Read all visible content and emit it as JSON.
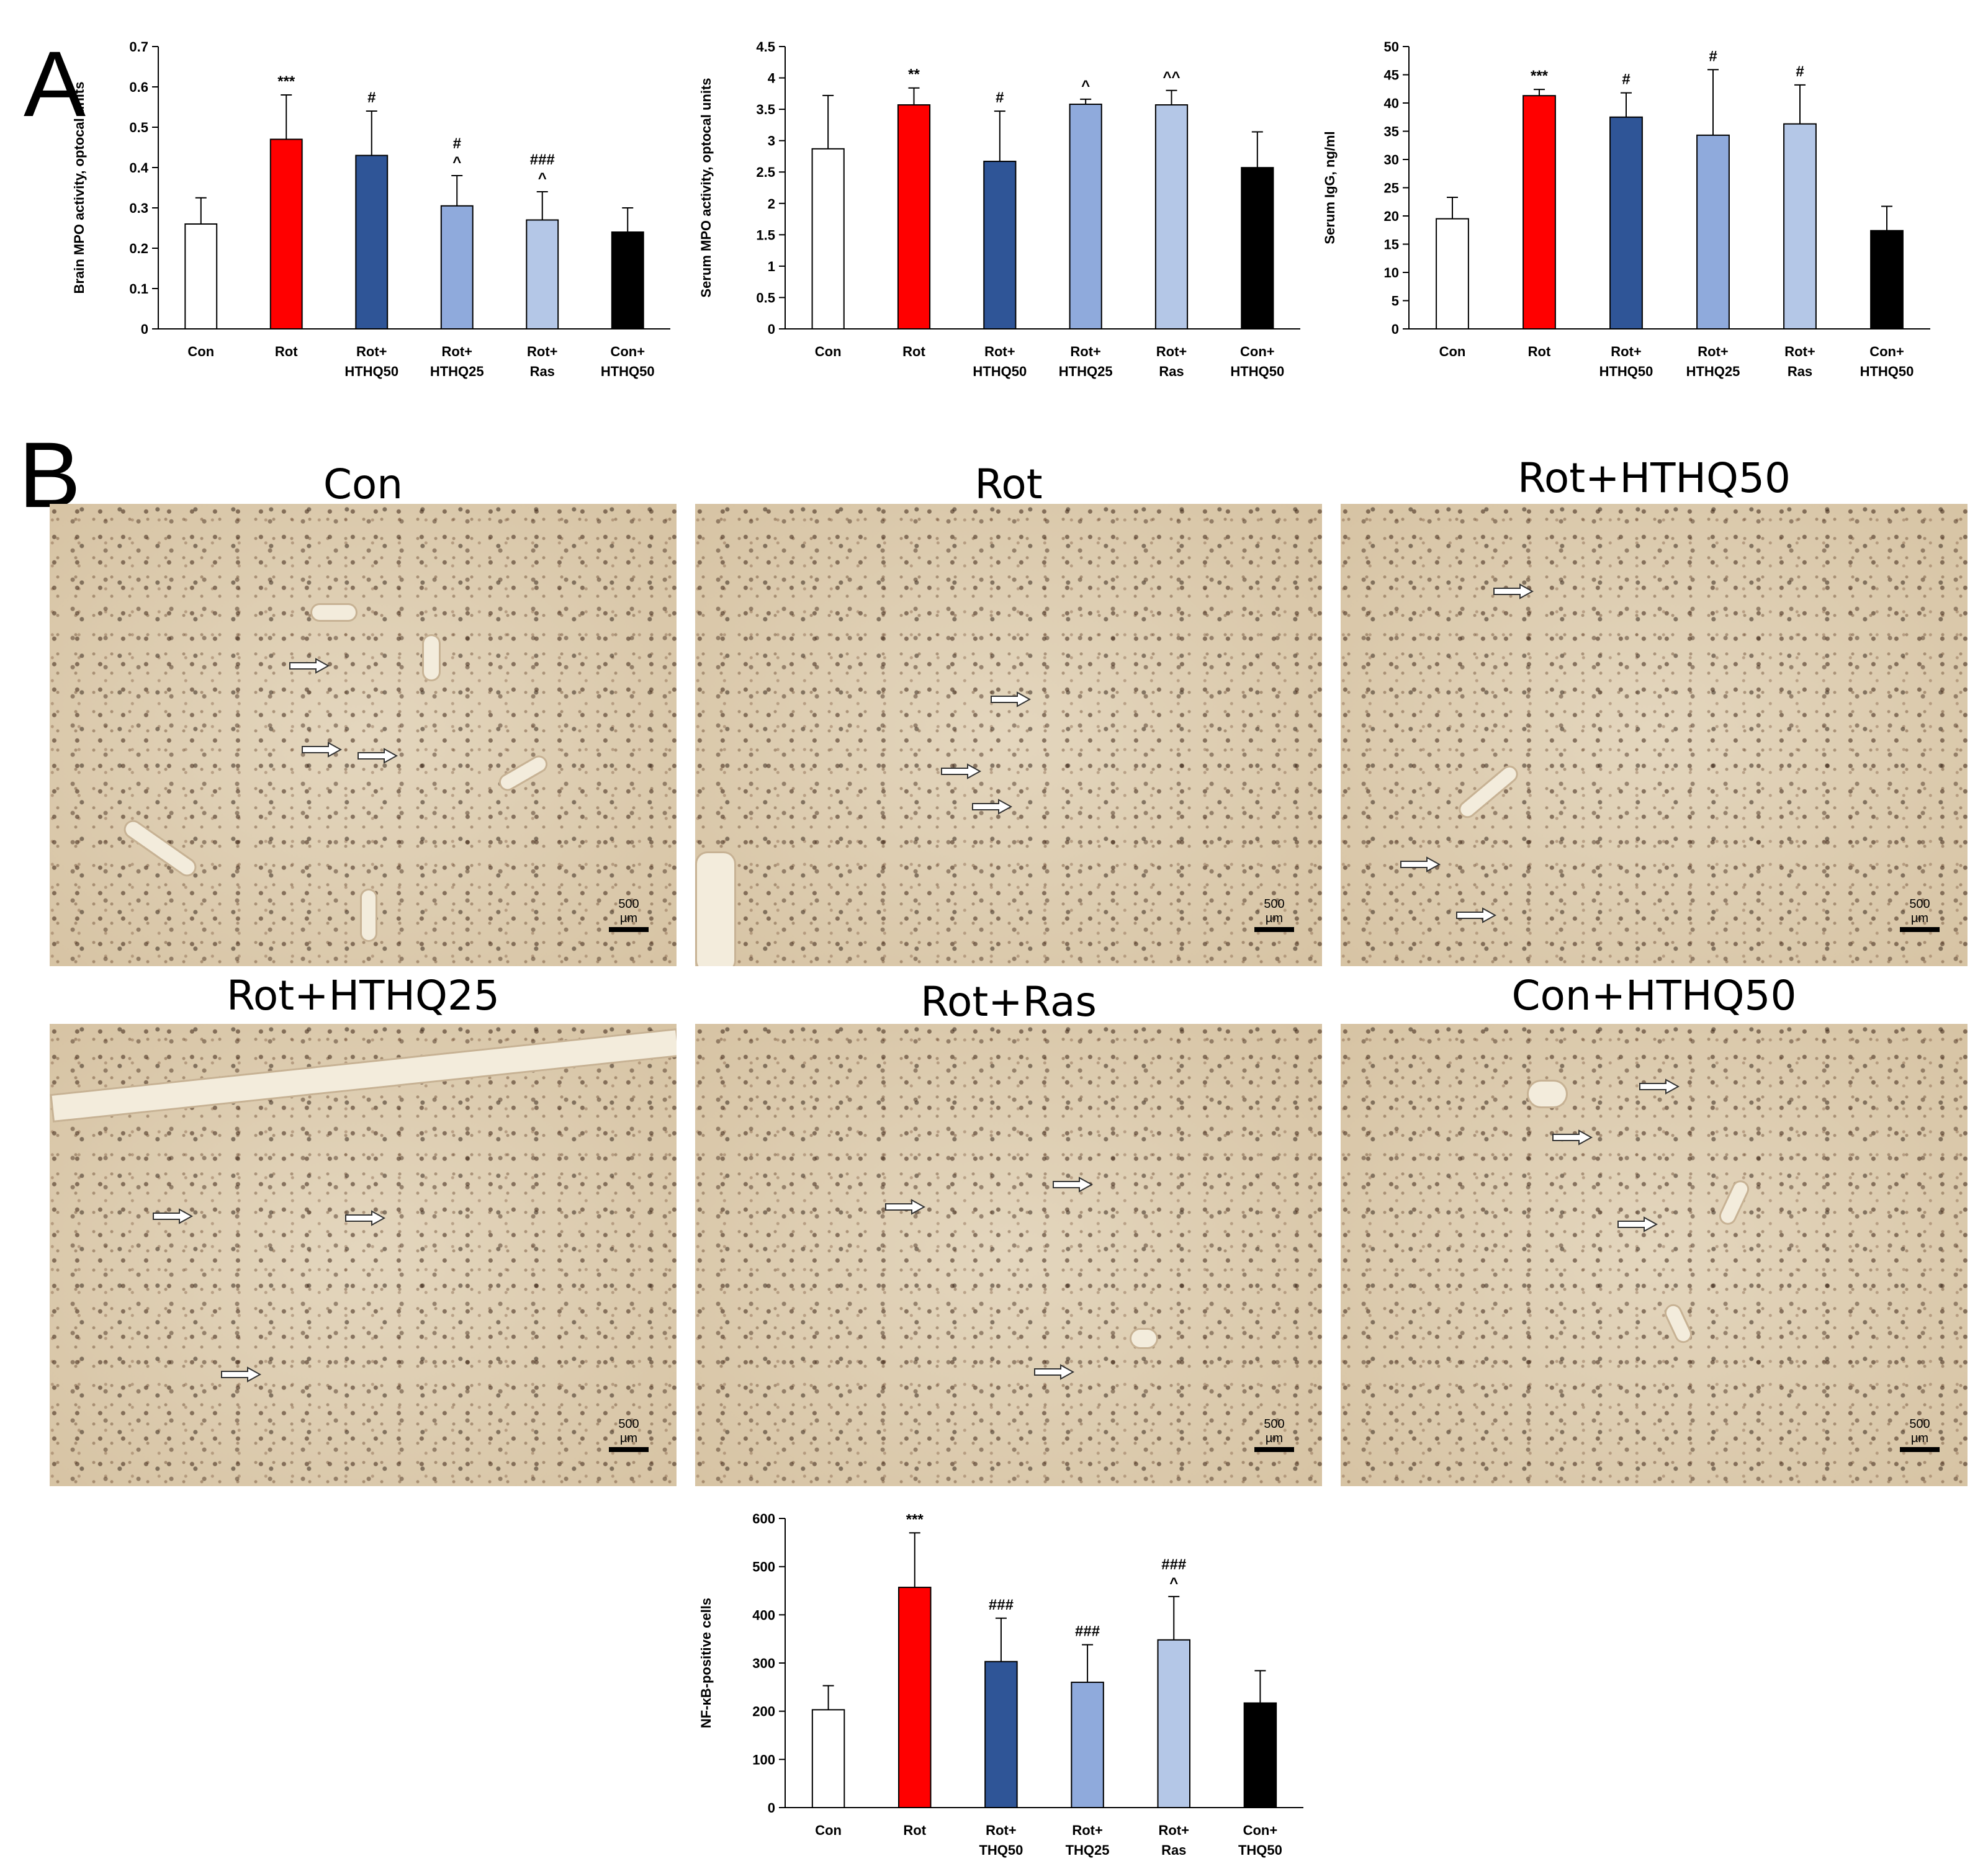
{
  "panels": {
    "a_label": "A",
    "b_label": "B"
  },
  "micrographs": [
    {
      "title": "Con",
      "scale": "500 µm"
    },
    {
      "title": "Rot",
      "scale": "500 µm"
    },
    {
      "title": "Rot+HTHQ50",
      "scale": "500 µm"
    },
    {
      "title": "Rot+HTHQ25",
      "scale": "500 µm"
    },
    {
      "title": "Rot+Ras",
      "scale": "500 µm"
    },
    {
      "title": "Con+HTHQ50",
      "scale": "500 µm"
    }
  ],
  "colors": {
    "con": "#ffffff",
    "rot": "#ff0000",
    "rot_hthq50": "#2f5597",
    "rot_hthq25": "#8faadc",
    "rot_ras": "#b4c7e7",
    "con_hthq50": "#000000"
  },
  "chart_data": [
    {
      "type": "bar",
      "categories": [
        [
          "Con"
        ],
        [
          "Rot"
        ],
        [
          "Rot+",
          "HTHQ50"
        ],
        [
          "Rot+",
          "HTHQ25"
        ],
        [
          "Rot+",
          "Ras"
        ],
        [
          "Con+",
          "HTHQ50"
        ]
      ],
      "values": [
        0.26,
        0.47,
        0.43,
        0.305,
        0.27,
        0.24
      ],
      "errors": [
        0.065,
        0.11,
        0.11,
        0.075,
        0.07,
        0.06
      ],
      "annotations": [
        [],
        [
          "***"
        ],
        [
          "#"
        ],
        [
          "#",
          "^"
        ],
        [
          "###",
          "^"
        ],
        []
      ],
      "ylabel": "Brain MPO activity, optocal units",
      "ylim": [
        0,
        0.7
      ],
      "yticks": [
        "0",
        "0.1",
        "0.2",
        "0.3",
        "0.4",
        "0.5",
        "0.6",
        "0.7"
      ]
    },
    {
      "type": "bar",
      "categories": [
        [
          "Con"
        ],
        [
          "Rot"
        ],
        [
          "Rot+",
          "HTHQ50"
        ],
        [
          "Rot+",
          "HTHQ25"
        ],
        [
          "Rot+",
          "Ras"
        ],
        [
          "Con+",
          "HTHQ50"
        ]
      ],
      "values": [
        2.87,
        3.57,
        2.67,
        3.58,
        3.57,
        2.57
      ],
      "errors": [
        0.85,
        0.27,
        0.8,
        0.08,
        0.23,
        0.57
      ],
      "annotations": [
        [],
        [
          "**"
        ],
        [
          "#"
        ],
        [
          "^"
        ],
        [
          "^^"
        ],
        []
      ],
      "ylabel": "Serum MPO activity, optocal units",
      "ylim": [
        0,
        4.5
      ],
      "yticks": [
        "0",
        "0.5",
        "1",
        "1.5",
        "2",
        "2.5",
        "3",
        "3.5",
        "4",
        "4.5"
      ]
    },
    {
      "type": "bar",
      "categories": [
        [
          "Con"
        ],
        [
          "Rot"
        ],
        [
          "Rot+",
          "HTHQ50"
        ],
        [
          "Rot+",
          "HTHQ25"
        ],
        [
          "Rot+",
          "Ras"
        ],
        [
          "Con+",
          "HTHQ50"
        ]
      ],
      "values": [
        19.5,
        41.3,
        37.5,
        34.3,
        36.3,
        17.4
      ],
      "errors": [
        3.8,
        1.1,
        4.3,
        11.6,
        6.9,
        4.3
      ],
      "annotations": [
        [],
        [
          "***"
        ],
        [
          "#"
        ],
        [
          "#"
        ],
        [
          "#"
        ],
        []
      ],
      "ylabel": "Serum IgG, ng/ml",
      "ylim": [
        0,
        50
      ],
      "yticks": [
        "0",
        "5",
        "10",
        "15",
        "20",
        "25",
        "30",
        "35",
        "40",
        "45",
        "50"
      ]
    },
    {
      "type": "bar",
      "categories": [
        [
          "Con"
        ],
        [
          "Rot"
        ],
        [
          "Rot+",
          "THQ50"
        ],
        [
          "Rot+",
          "THQ25"
        ],
        [
          "Rot+",
          "Ras"
        ],
        [
          "Con+",
          "THQ50"
        ]
      ],
      "values": [
        203,
        457,
        303,
        260,
        348,
        217
      ],
      "errors": [
        50,
        113,
        90,
        78,
        90,
        67
      ],
      "annotations": [
        [],
        [
          "***"
        ],
        [
          "###"
        ],
        [
          "###"
        ],
        [
          "###",
          "^"
        ],
        []
      ],
      "ylabel": "NF-κB-positive cells",
      "ylim": [
        0,
        600
      ],
      "yticks": [
        "0",
        "100",
        "200",
        "300",
        "400",
        "500",
        "600"
      ]
    }
  ]
}
